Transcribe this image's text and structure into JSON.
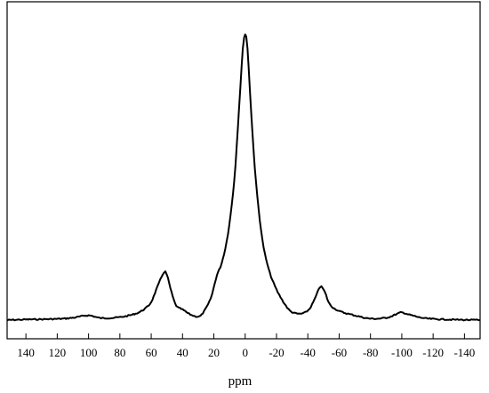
{
  "chart_data": {
    "type": "line",
    "title": "",
    "xlabel": "ppm",
    "ylabel": "",
    "x_reversed": true,
    "xlim": [
      152,
      -150
    ],
    "ylim": [
      0,
      1
    ],
    "grid": false,
    "legend": "none",
    "xticks": [
      140,
      120,
      100,
      80,
      60,
      40,
      20,
      0,
      -20,
      -40,
      -60,
      -80,
      -100,
      -120,
      -140
    ],
    "xtick_labels": [
      "140",
      "120",
      "100",
      "80",
      "60",
      "40",
      "20",
      "0",
      "-20",
      "-40",
      "-60",
      "-80",
      "-100",
      "-120",
      "-140"
    ],
    "series": [
      {
        "color": "#000000",
        "points": [
          [
            152,
            0.006
          ],
          [
            140,
            0.008
          ],
          [
            120,
            0.01
          ],
          [
            110,
            0.014
          ],
          [
            100,
            0.022
          ],
          [
            92,
            0.013
          ],
          [
            80,
            0.016
          ],
          [
            70,
            0.028
          ],
          [
            64,
            0.045
          ],
          [
            60,
            0.068
          ],
          [
            56,
            0.12
          ],
          [
            52,
            0.168
          ],
          [
            50,
            0.16
          ],
          [
            47,
            0.1
          ],
          [
            44,
            0.055
          ],
          [
            40,
            0.042
          ],
          [
            35,
            0.025
          ],
          [
            30,
            0.018
          ],
          [
            27,
            0.03
          ],
          [
            22,
            0.08
          ],
          [
            18,
            0.16
          ],
          [
            15,
            0.2
          ],
          [
            11,
            0.3
          ],
          [
            7,
            0.48
          ],
          [
            4,
            0.72
          ],
          [
            1.5,
            0.93
          ],
          [
            0,
            0.98
          ],
          [
            -1.5,
            0.93
          ],
          [
            -4,
            0.7
          ],
          [
            -7,
            0.47
          ],
          [
            -11,
            0.28
          ],
          [
            -15,
            0.18
          ],
          [
            -20,
            0.11
          ],
          [
            -26,
            0.055
          ],
          [
            -30,
            0.033
          ],
          [
            -36,
            0.028
          ],
          [
            -41,
            0.044
          ],
          [
            -45,
            0.085
          ],
          [
            -48,
            0.12
          ],
          [
            -51,
            0.1
          ],
          [
            -54,
            0.06
          ],
          [
            -60,
            0.037
          ],
          [
            -70,
            0.022
          ],
          [
            -80,
            0.011
          ],
          [
            -90,
            0.014
          ],
          [
            -96,
            0.025
          ],
          [
            -100,
            0.032
          ],
          [
            -105,
            0.024
          ],
          [
            -115,
            0.012
          ],
          [
            -130,
            0.008
          ],
          [
            -150,
            0.006
          ]
        ]
      }
    ]
  }
}
